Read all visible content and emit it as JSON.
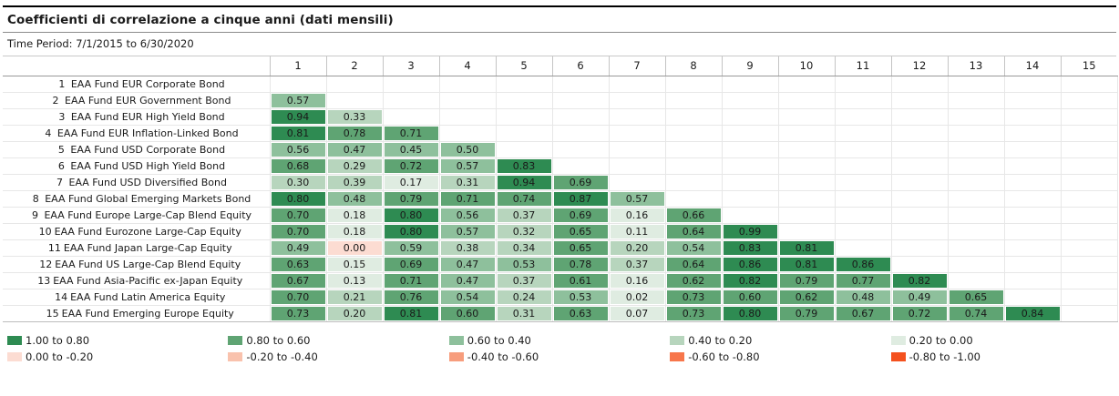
{
  "header": {
    "title": "Coefficienti di correlazione a cinque anni (dati mensili)",
    "time_period": "Time Period: 7/1/2015 to 6/30/2020"
  },
  "chart_data": {
    "type": "heatmap",
    "title": "Coefficienti di correlazione a cinque anni (dati mensili)",
    "time_period": "7/1/2015 to 6/30/2020",
    "column_headers": [
      "1",
      "2",
      "3",
      "4",
      "5",
      "6",
      "7",
      "8",
      "9",
      "10",
      "11",
      "12",
      "13",
      "14",
      "15"
    ],
    "rows": [
      {
        "num": "1",
        "label": "EAA Fund EUR Corporate Bond",
        "values": []
      },
      {
        "num": "2",
        "label": "EAA Fund EUR Government Bond",
        "values": [
          "0.57"
        ]
      },
      {
        "num": "3",
        "label": "EAA Fund EUR High Yield Bond",
        "values": [
          "0.94",
          "0.33"
        ]
      },
      {
        "num": "4",
        "label": "EAA Fund EUR Inflation-Linked Bond",
        "values": [
          "0.81",
          "0.78",
          "0.71"
        ]
      },
      {
        "num": "5",
        "label": "EAA Fund USD Corporate Bond",
        "values": [
          "0.56",
          "0.47",
          "0.45",
          "0.50"
        ]
      },
      {
        "num": "6",
        "label": "EAA Fund USD High Yield Bond",
        "values": [
          "0.68",
          "0.29",
          "0.72",
          "0.57",
          "0.83"
        ]
      },
      {
        "num": "7",
        "label": "EAA Fund USD Diversified Bond",
        "values": [
          "0.30",
          "0.39",
          "0.17",
          "0.31",
          "0.94",
          "0.69"
        ]
      },
      {
        "num": "8",
        "label": "EAA Fund Global Emerging Markets Bond",
        "values": [
          "0.80",
          "0.48",
          "0.79",
          "0.71",
          "0.74",
          "0.87",
          "0.57"
        ]
      },
      {
        "num": "9",
        "label": "EAA Fund Europe Large-Cap Blend Equity",
        "values": [
          "0.70",
          "0.18",
          "0.80",
          "0.56",
          "0.37",
          "0.69",
          "0.16",
          "0.66"
        ]
      },
      {
        "num": "10",
        "label": "EAA Fund Eurozone Large-Cap Equity",
        "values": [
          "0.70",
          "0.18",
          "0.80",
          "0.57",
          "0.32",
          "0.65",
          "0.11",
          "0.64",
          "0.99"
        ]
      },
      {
        "num": "11",
        "label": "EAA Fund Japan Large-Cap Equity",
        "values": [
          "0.49",
          "0.00",
          "0.59",
          "0.38",
          "0.34",
          "0.65",
          "0.20",
          "0.54",
          "0.83",
          "0.81"
        ]
      },
      {
        "num": "12",
        "label": "EAA Fund US Large-Cap Blend Equity",
        "values": [
          "0.63",
          "0.15",
          "0.69",
          "0.47",
          "0.53",
          "0.78",
          "0.37",
          "0.64",
          "0.86",
          "0.81",
          "0.86"
        ]
      },
      {
        "num": "13",
        "label": "EAA Fund Asia-Pacific ex-Japan Equity",
        "values": [
          "0.67",
          "0.13",
          "0.71",
          "0.47",
          "0.37",
          "0.61",
          "0.16",
          "0.62",
          "0.82",
          "0.79",
          "0.77",
          "0.82"
        ]
      },
      {
        "num": "14",
        "label": "EAA Fund Latin America Equity",
        "values": [
          "0.70",
          "0.21",
          "0.76",
          "0.54",
          "0.24",
          "0.53",
          "0.02",
          "0.73",
          "0.60",
          "0.62",
          "0.48",
          "0.49",
          "0.65"
        ]
      },
      {
        "num": "15",
        "label": "EAA Fund Emerging Europe Equity",
        "values": [
          "0.73",
          "0.20",
          "0.81",
          "0.60",
          "0.31",
          "0.63",
          "0.07",
          "0.73",
          "0.80",
          "0.79",
          "0.67",
          "0.72",
          "0.74",
          "0.84"
        ]
      }
    ],
    "legend": {
      "positive_buckets": [
        {
          "label": "1.00 to 0.80",
          "min": 0.8,
          "color": "#2e8b52"
        },
        {
          "label": "0.80 to 0.60",
          "min": 0.6,
          "color": "#5fa473"
        },
        {
          "label": "0.60 to 0.40",
          "min": 0.4,
          "color": "#8ec09c"
        },
        {
          "label": "0.40 to 0.20",
          "min": 0.2,
          "color": "#b7d5bd"
        },
        {
          "label": "0.20 to 0.00",
          "min": 0.0,
          "color": "#dfece1"
        }
      ],
      "negative_buckets": [
        {
          "label": "0.00 to -0.20",
          "min": -0.2,
          "color": "#fcdcd2"
        },
        {
          "label": "-0.20 to -0.40",
          "min": -0.4,
          "color": "#f9c2ad"
        },
        {
          "label": "-0.40 to -0.60",
          "min": -0.6,
          "color": "#f79d7d"
        },
        {
          "label": "-0.60 to -0.80",
          "min": -0.8,
          "color": "#f7764b"
        },
        {
          "label": "-0.80 to -1.00",
          "min": -1.0,
          "color": "#f4511e"
        }
      ]
    }
  }
}
